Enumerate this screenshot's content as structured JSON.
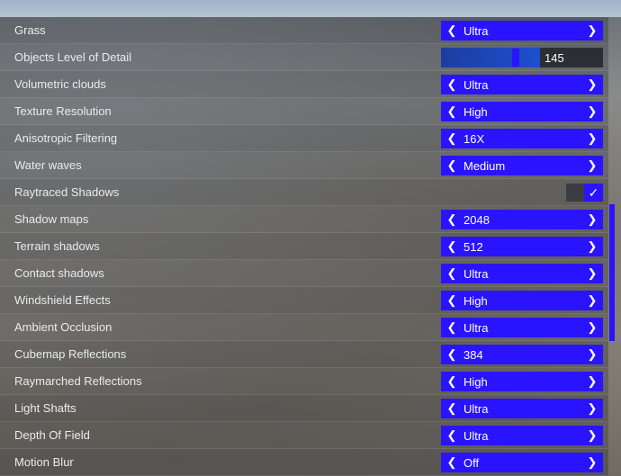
{
  "settings": [
    {
      "label": "Grass",
      "control": "selector",
      "value": "Ultra"
    },
    {
      "label": "Objects Level of Detail",
      "control": "slider",
      "value": "145",
      "level_fraction": 0.44
    },
    {
      "label": "Volumetric clouds",
      "control": "selector",
      "value": "Ultra"
    },
    {
      "label": "Texture Resolution",
      "control": "selector",
      "value": "High"
    },
    {
      "label": "Anisotropic Filtering",
      "control": "selector",
      "value": "16X"
    },
    {
      "label": "Water waves",
      "control": "selector",
      "value": "Medium"
    },
    {
      "label": "Raytraced Shadows",
      "control": "toggle",
      "checked": true
    },
    {
      "label": "Shadow maps",
      "control": "selector",
      "value": "2048"
    },
    {
      "label": "Terrain shadows",
      "control": "selector",
      "value": "512"
    },
    {
      "label": "Contact shadows",
      "control": "selector",
      "value": "Ultra"
    },
    {
      "label": "Windshield Effects",
      "control": "selector",
      "value": "High"
    },
    {
      "label": "Ambient Occlusion",
      "control": "selector",
      "value": "Ultra"
    },
    {
      "label": "Cubemap Reflections",
      "control": "selector",
      "value": "384"
    },
    {
      "label": "Raymarched Reflections",
      "control": "selector",
      "value": "High"
    },
    {
      "label": "Light Shafts",
      "control": "selector",
      "value": "Ultra"
    },
    {
      "label": "Depth Of Field",
      "control": "selector",
      "value": "Ultra"
    },
    {
      "label": "Motion Blur",
      "control": "selector",
      "value": "Off"
    }
  ],
  "icons": {
    "left": "chevron-left-icon",
    "right": "chevron-right-icon",
    "check": "check-icon"
  },
  "colors": {
    "accent": "#2a14ff",
    "slider_fill": "#1f4fce",
    "readout_bg": "#2b2e33"
  }
}
